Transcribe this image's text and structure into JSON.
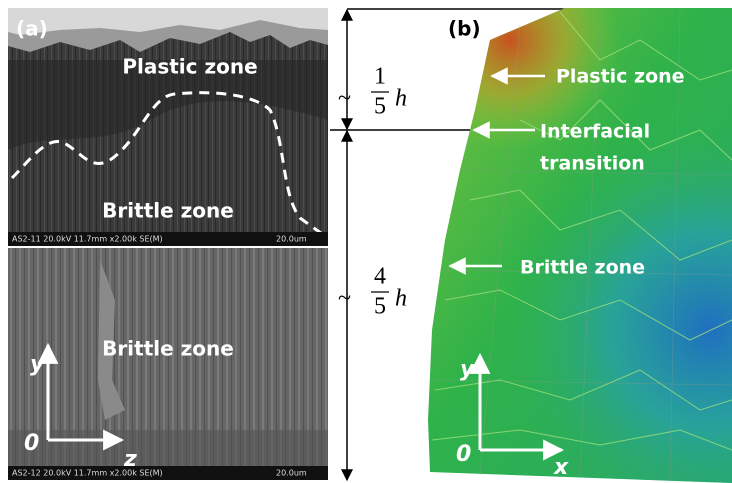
{
  "panel_a": {
    "label": "(a)",
    "top_image": {
      "plastic_label": "Plastic zone",
      "brittle_label": "Brittle zone",
      "info": "AS2-11 20.0kV 11.7mm x2.00k SE(M)",
      "scale": "20.0um"
    },
    "bottom_image": {
      "brittle_label": "Brittle zone",
      "info": "AS2-12 20.0kV 11.7mm x2.00k SE(M)",
      "scale": "20.0um",
      "axes": {
        "vertical": "y",
        "origin": "0",
        "horizontal": "z"
      }
    }
  },
  "dimensions": {
    "upper": {
      "tilde": "~",
      "numerator": "1",
      "denominator": "5",
      "symbol": "h"
    },
    "lower": {
      "tilde": "~",
      "numerator": "4",
      "denominator": "5",
      "symbol": "h"
    }
  },
  "panel_b": {
    "label": "(b)",
    "annotations": [
      {
        "lines": [
          "Plastic zone"
        ]
      },
      {
        "lines": [
          "Interfacial",
          "transition"
        ]
      },
      {
        "lines": [
          "Brittle zone"
        ]
      }
    ],
    "axes": {
      "vertical": "y",
      "origin": "0",
      "horizontal": "x"
    }
  }
}
